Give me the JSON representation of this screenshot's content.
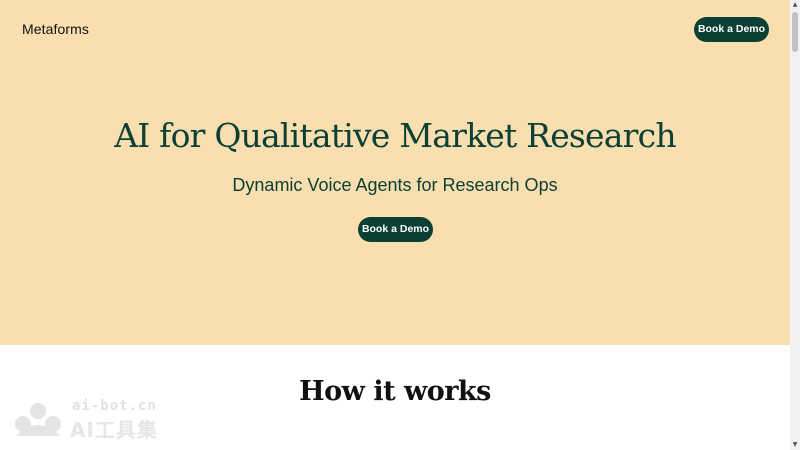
{
  "colors": {
    "hero_background": "#f9deb0",
    "brand_green": "#0c4035",
    "page_background": "#ffffff"
  },
  "header": {
    "brand": "Metaforms",
    "cta_label": "Book a Demo"
  },
  "hero": {
    "title": "AI for Qualitative Market Research",
    "subtitle": "Dynamic Voice Agents for Research Ops",
    "cta_label": "Book a Demo"
  },
  "how_it_works": {
    "title": "How it works"
  },
  "watermark": {
    "line1": "ai-bot.cn",
    "line2": "AI工具集"
  },
  "scrollbar": {
    "up_icon": "arrow-up-icon",
    "down_icon": "arrow-down-icon"
  }
}
